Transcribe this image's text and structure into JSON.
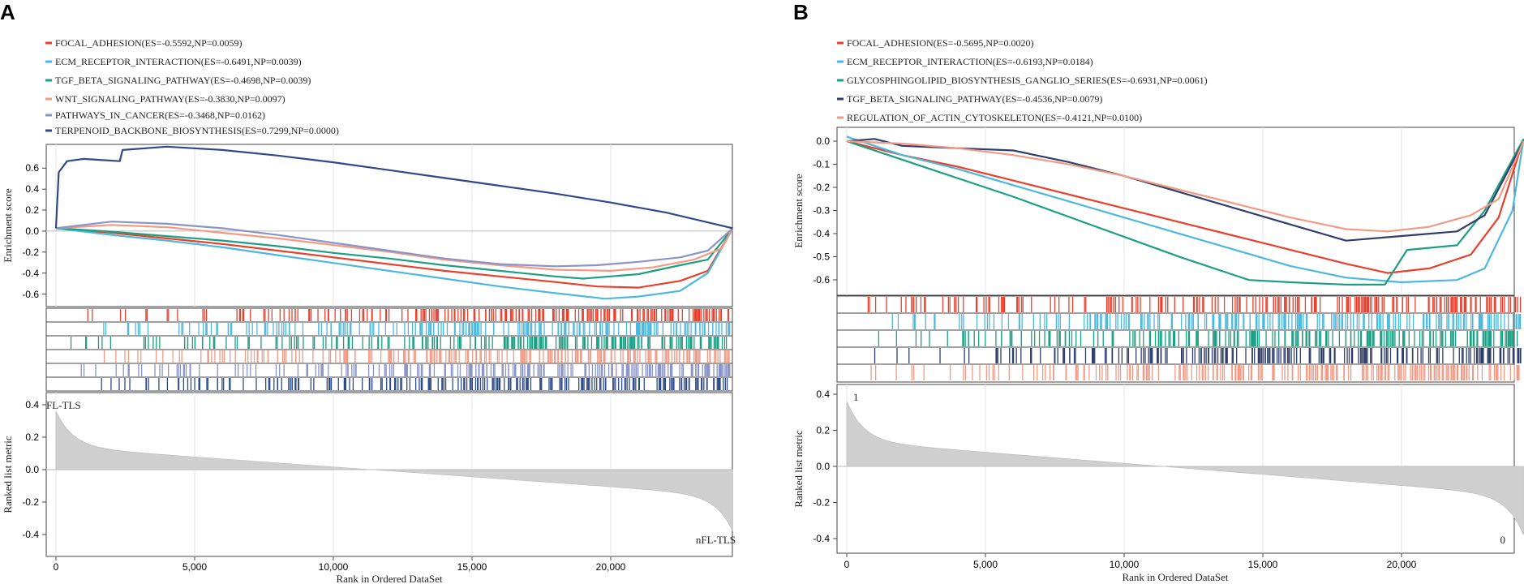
{
  "panels": [
    {
      "id": "A",
      "letter": "A",
      "legend": [
        {
          "label": "FOCAL_ADHESION(ES=-0.5592,NP=0.0059)",
          "color": "#e8402d"
        },
        {
          "label": "ECM_RECEPTOR_INTERACTION(ES=-0.6491,NP=0.0039)",
          "color": "#4db8dc"
        },
        {
          "label": "TGF_BETA_SIGNALING_PATHWAY(ES=-0.4698,NP=0.0039)",
          "color": "#1e9e83"
        },
        {
          "label": "WNT_SIGNALING_PATHWAY(ES=-0.3830,NP=0.0097)",
          "color": "#f39a85"
        },
        {
          "label": "PATHWAYS_IN_CANCER(ES=-0.3468,NP=0.0162)",
          "color": "#8a94c6"
        },
        {
          "label": "TERPENOID_BACKBONE_BIOSYNTHESIS(ES=0.7299,NP=0.0000)",
          "color": "#2f4a8a"
        }
      ],
      "es_ylabel": "Enrichment score",
      "rank_ylabel": "Ranked list metric",
      "xlabel": "Rank in Ordered DataSet",
      "x_ticks": [
        "0",
        "5,000",
        "10,000",
        "15,000",
        "20,000"
      ],
      "es_ticks": [
        "0.6",
        "0.4",
        "0.2",
        "0.0",
        "-0.2",
        "-0.4",
        "-0.6"
      ],
      "rank_ticks": [
        "0.4",
        "0.2",
        "0.0",
        "-0.2",
        "-0.4"
      ],
      "top_label": "FL-TLS",
      "bottom_label": "nFL-TLS"
    },
    {
      "id": "B",
      "letter": "B",
      "legend": [
        {
          "label": "FOCAL_ADHESION(ES=-0.5695,NP=0.0020)",
          "color": "#e8402d"
        },
        {
          "label": "ECM_RECEPTOR_INTERACTION(ES=-0.6193,NP=0.0184)",
          "color": "#4db8dc"
        },
        {
          "label": "GLYCOSPHINGOLIPID_BIOSYNTHESIS_GANGLIO_SERIES(ES=-0.6931,NP=0.0061)",
          "color": "#1e9e83"
        },
        {
          "label": "TGF_BETA_SIGNALING_PATHWAY(ES=-0.4536,NP=0.0079)",
          "color": "#2f3e6b"
        },
        {
          "label": "REGULATION_OF_ACTIN_CYTOSKELETON(ES=-0.4121,NP=0.0100)",
          "color": "#f39a85"
        }
      ],
      "es_ylabel": "Enrichment score",
      "rank_ylabel": "Ranked list metric",
      "xlabel": "Rank in Ordered DataSet",
      "x_ticks": [
        "0",
        "5,000",
        "10,000",
        "15,000",
        "20,000"
      ],
      "es_ticks": [
        "0.0",
        "-0.1",
        "-0.2",
        "-0.3",
        "-0.4",
        "-0.5",
        "-0.6"
      ],
      "rank_ticks": [
        "0.4",
        "0.2",
        "0.0",
        "-0.2",
        "-0.4"
      ],
      "top_label": "1",
      "bottom_label": "0"
    }
  ],
  "chart_data": [
    {
      "type": "line",
      "title": "",
      "xlabel": "Rank in Ordered DataSet",
      "ylabel": "Enrichment score",
      "xlim": [
        0,
        24400
      ],
      "ylim": [
        -0.7,
        0.75
      ],
      "series": [
        {
          "name": "FOCAL_ADHESION",
          "color": "#e8402d",
          "x": [
            0,
            2000,
            4000,
            6000,
            8000,
            10000,
            12000,
            14000,
            16000,
            18000,
            19500,
            21000,
            22500,
            23500,
            24400
          ],
          "y": [
            0,
            -0.04,
            -0.09,
            -0.14,
            -0.2,
            -0.26,
            -0.32,
            -0.38,
            -0.43,
            -0.48,
            -0.52,
            -0.53,
            -0.47,
            -0.38,
            0
          ]
        },
        {
          "name": "ECM_RECEPTOR_INTERACTION",
          "color": "#4db8dc",
          "x": [
            0,
            2000,
            4000,
            6000,
            8000,
            10000,
            12000,
            14000,
            16000,
            18000,
            19800,
            21000,
            22500,
            23500,
            24400
          ],
          "y": [
            0,
            -0.06,
            -0.11,
            -0.17,
            -0.24,
            -0.31,
            -0.38,
            -0.45,
            -0.52,
            -0.58,
            -0.63,
            -0.61,
            -0.56,
            -0.4,
            0
          ]
        },
        {
          "name": "TGF_BETA_SIGNALING_PATHWAY",
          "color": "#1e9e83",
          "x": [
            0,
            2000,
            4000,
            6000,
            8000,
            10000,
            12000,
            14000,
            16000,
            18000,
            19000,
            21000,
            22500,
            23500,
            24400
          ],
          "y": [
            0,
            -0.03,
            -0.07,
            -0.11,
            -0.16,
            -0.22,
            -0.27,
            -0.33,
            -0.38,
            -0.43,
            -0.45,
            -0.41,
            -0.33,
            -0.28,
            0
          ]
        },
        {
          "name": "WNT_SIGNALING_PATHWAY",
          "color": "#f39a85",
          "x": [
            0,
            2000,
            4000,
            6000,
            8000,
            10000,
            12000,
            14000,
            16000,
            18000,
            20000,
            21500,
            23000,
            24000,
            24400
          ],
          "y": [
            0,
            0.03,
            0.01,
            -0.04,
            -0.09,
            -0.15,
            -0.21,
            -0.28,
            -0.33,
            -0.37,
            -0.38,
            -0.35,
            -0.28,
            -0.18,
            0
          ]
        },
        {
          "name": "PATHWAYS_IN_CANCER",
          "color": "#8a94c6",
          "x": [
            0,
            2000,
            4000,
            6000,
            8000,
            10000,
            12000,
            14000,
            16000,
            18000,
            19500,
            21000,
            22500,
            23500,
            24400
          ],
          "y": [
            0,
            0.06,
            0.04,
            0,
            -0.06,
            -0.13,
            -0.2,
            -0.27,
            -0.32,
            -0.34,
            -0.33,
            -0.3,
            -0.26,
            -0.2,
            0
          ]
        },
        {
          "name": "TERPENOID_BACKBONE_BIOSYNTHESIS",
          "color": "#2f4a8a",
          "x": [
            0,
            100,
            400,
            1000,
            2300,
            2400,
            4000,
            6000,
            8000,
            10000,
            12000,
            14000,
            16000,
            18000,
            20000,
            22000,
            24400
          ],
          "y": [
            0,
            0.5,
            0.6,
            0.62,
            0.6,
            0.7,
            0.73,
            0.7,
            0.65,
            0.59,
            0.52,
            0.45,
            0.38,
            0.31,
            0.23,
            0.14,
            0
          ]
        }
      ]
    },
    {
      "type": "line",
      "title": "",
      "xlabel": "Rank in Ordered DataSet",
      "ylabel": "Enrichment score",
      "xlim": [
        0,
        24400
      ],
      "ylim": [
        -0.68,
        0.06
      ],
      "series": [
        {
          "name": "FOCAL_ADHESION",
          "color": "#e8402d",
          "x": [
            0,
            2000,
            4000,
            6000,
            8000,
            10000,
            12000,
            14000,
            16000,
            18000,
            19500,
            21000,
            22500,
            23500,
            24400
          ],
          "y": [
            0,
            -0.06,
            -0.11,
            -0.17,
            -0.23,
            -0.29,
            -0.35,
            -0.41,
            -0.47,
            -0.53,
            -0.57,
            -0.55,
            -0.49,
            -0.33,
            0.01
          ]
        },
        {
          "name": "ECM_RECEPTOR_INTERACTION",
          "color": "#4db8dc",
          "x": [
            0,
            2000,
            4000,
            6000,
            8000,
            10000,
            12000,
            14000,
            16000,
            18000,
            20000,
            22000,
            23000,
            24000,
            24400
          ],
          "y": [
            0.02,
            -0.06,
            -0.12,
            -0.19,
            -0.26,
            -0.33,
            -0.4,
            -0.47,
            -0.54,
            -0.59,
            -0.61,
            -0.6,
            -0.55,
            -0.3,
            0.01
          ]
        },
        {
          "name": "GLYCOSPHINGOLIPID_BIOSYNTHESIS_GANGLIO_SERIES",
          "color": "#1e9e83",
          "x": [
            0,
            3000,
            6000,
            9000,
            12000,
            14500,
            16000,
            18000,
            19400,
            20200,
            22000,
            23000,
            24400
          ],
          "y": [
            0,
            -0.12,
            -0.24,
            -0.37,
            -0.5,
            -0.6,
            -0.61,
            -0.62,
            -0.62,
            -0.47,
            -0.45,
            -0.3,
            0.01
          ]
        },
        {
          "name": "TGF_BETA_SIGNALING_PATHWAY",
          "color": "#2f3e6b",
          "x": [
            0,
            1000,
            2000,
            4000,
            6000,
            8000,
            10000,
            12000,
            14000,
            16000,
            18000,
            20000,
            22000,
            23000,
            24400
          ],
          "y": [
            0,
            0.01,
            -0.02,
            -0.03,
            -0.04,
            -0.09,
            -0.15,
            -0.22,
            -0.29,
            -0.36,
            -0.43,
            -0.41,
            -0.39,
            -0.32,
            0
          ]
        },
        {
          "name": "REGULATION_OF_ACTIN_CYTOSKELETON",
          "color": "#f39a85",
          "x": [
            0,
            2000,
            4000,
            6000,
            8000,
            10000,
            12000,
            14000,
            16000,
            18000,
            19500,
            21000,
            22500,
            23500,
            24400
          ],
          "y": [
            0,
            -0.01,
            -0.03,
            -0.06,
            -0.1,
            -0.15,
            -0.21,
            -0.27,
            -0.33,
            -0.38,
            -0.39,
            -0.37,
            -0.32,
            -0.25,
            0
          ]
        }
      ]
    }
  ]
}
